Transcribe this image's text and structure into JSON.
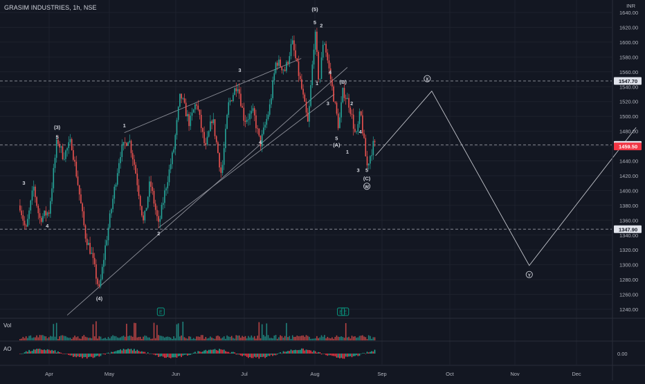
{
  "header": {
    "symbol_title": "GRASIM INDUSTRIES, 1h, NSE",
    "currency": "INR"
  },
  "panes": {
    "volume_label": "Vol",
    "ao_label": "AO",
    "ao_zero_label": "0.00"
  },
  "colors": {
    "background": "#131722",
    "grid": "#1e222d",
    "up": "#26a69a",
    "down": "#ef5350",
    "ao_up": "#22ab94",
    "ao_down": "#f23645",
    "drawing": "#b2b5be",
    "text": "#d1d4dc",
    "axis_text": "#b2b5be",
    "event_badge": "#089981"
  },
  "chart_data": {
    "type": "candlestick",
    "title": "GRASIM INDUSTRIES, 1h, NSE",
    "currency": "INR",
    "ylim": [
      1220,
      1650
    ],
    "y_ticks": [
      1240,
      1260,
      1280,
      1300,
      1320,
      1340,
      1360,
      1380,
      1400,
      1420,
      1440,
      1460,
      1480,
      1500,
      1520,
      1540,
      1560,
      1580,
      1600,
      1620,
      1640
    ],
    "x_ticks": [
      "Apr",
      "May",
      "Jun",
      "Jul",
      "Aug",
      "Sep",
      "Oct",
      "Nov",
      "Dec"
    ],
    "price_path": [
      {
        "x": "Mar 17",
        "y": 1380
      },
      {
        "x": "Mar 20",
        "y": 1345
      },
      {
        "x": "Mar 24",
        "y": 1405
      },
      {
        "x": "Mar 27",
        "y": 1362
      },
      {
        "x": "Apr 01",
        "y": 1372
      },
      {
        "x": "Apr 05",
        "y": 1470
      },
      {
        "x": "Apr 08",
        "y": 1446
      },
      {
        "x": "Apr 12",
        "y": 1466
      },
      {
        "x": "Apr 15",
        "y": 1415
      },
      {
        "x": "Apr 19",
        "y": 1340
      },
      {
        "x": "Apr 22",
        "y": 1315
      },
      {
        "x": "Apr 26",
        "y": 1265
      },
      {
        "x": "Apr 29",
        "y": 1325
      },
      {
        "x": "May 03",
        "y": 1395
      },
      {
        "x": "May 06",
        "y": 1450
      },
      {
        "x": "May 10",
        "y": 1472
      },
      {
        "x": "May 13",
        "y": 1430
      },
      {
        "x": "May 17",
        "y": 1355
      },
      {
        "x": "May 20",
        "y": 1412
      },
      {
        "x": "May 24",
        "y": 1352
      },
      {
        "x": "May 27",
        "y": 1400
      },
      {
        "x": "May 31",
        "y": 1455
      },
      {
        "x": "Jun 03",
        "y": 1530
      },
      {
        "x": "Jun 07",
        "y": 1490
      },
      {
        "x": "Jun 10",
        "y": 1520
      },
      {
        "x": "Jun 14",
        "y": 1455
      },
      {
        "x": "Jun 17",
        "y": 1500
      },
      {
        "x": "Jun 21",
        "y": 1420
      },
      {
        "x": "Jun 24",
        "y": 1515
      },
      {
        "x": "Jun 28",
        "y": 1545
      },
      {
        "x": "Jul 01",
        "y": 1495
      },
      {
        "x": "Jul 05",
        "y": 1505
      },
      {
        "x": "Jul 08",
        "y": 1462
      },
      {
        "x": "Jul 12",
        "y": 1510
      },
      {
        "x": "Jul 15",
        "y": 1575
      },
      {
        "x": "Jul 19",
        "y": 1562
      },
      {
        "x": "Jul 22",
        "y": 1600
      },
      {
        "x": "Jul 26",
        "y": 1540
      },
      {
        "x": "Jul 29",
        "y": 1488
      },
      {
        "x": "Aug 01",
        "y": 1616
      },
      {
        "x": "Aug 03",
        "y": 1540
      },
      {
        "x": "Aug 05",
        "y": 1608
      },
      {
        "x": "Aug 08",
        "y": 1555
      },
      {
        "x": "Aug 12",
        "y": 1485
      },
      {
        "x": "Aug 14",
        "y": 1535
      },
      {
        "x": "Aug 17",
        "y": 1515
      },
      {
        "x": "Aug 20",
        "y": 1470
      },
      {
        "x": "Aug 22",
        "y": 1507
      },
      {
        "x": "Aug 25",
        "y": 1432
      },
      {
        "x": "Aug 27",
        "y": 1452
      },
      {
        "x": "Aug 28",
        "y": 1462
      },
      {
        "x": "Aug 29",
        "y": 1459.5
      }
    ],
    "projection": [
      {
        "x": "Aug 29",
        "y": 1447
      },
      {
        "x": "Sep 23",
        "y": 1534
      },
      {
        "x": "Nov 08",
        "y": 1299
      },
      {
        "x": "Dec 31",
        "y": 1485
      }
    ],
    "price_labels": [
      {
        "value": 1547.7,
        "text": "1547.70",
        "style": "dark"
      },
      {
        "value": 1461.6,
        "text": "1461.60",
        "style": "dark"
      },
      {
        "value": 1459.5,
        "text": "1459.50",
        "style": "red"
      },
      {
        "value": 1347.9,
        "text": "1347.90",
        "style": "dark"
      }
    ],
    "horizontal_lines": [
      1547.7,
      1461.6,
      1347.9
    ],
    "wave_labels": [
      {
        "text": "3",
        "x": "Mar 19",
        "y": 1408
      },
      {
        "text": "(3)",
        "x": "Apr 05",
        "y": 1483
      },
      {
        "text": "5",
        "x": "Apr 05",
        "y": 1470
      },
      {
        "text": "4",
        "x": "Mar 31",
        "y": 1350
      },
      {
        "text": "(4)",
        "x": "Apr 26",
        "y": 1252
      },
      {
        "text": "1",
        "x": "May 08",
        "y": 1485
      },
      {
        "text": "2",
        "x": "May 24",
        "y": 1340
      },
      {
        "text": "3",
        "x": "Jun 29",
        "y": 1560
      },
      {
        "text": "4",
        "x": "Jul 08",
        "y": 1463
      },
      {
        "text": "(5)",
        "x": "Aug 01",
        "y": 1642
      },
      {
        "text": "5",
        "x": "Aug 01",
        "y": 1624
      },
      {
        "text": "2",
        "x": "Aug 04",
        "y": 1620
      },
      {
        "text": "1",
        "x": "Aug 02",
        "y": 1542
      },
      {
        "text": "4",
        "x": "Aug 08",
        "y": 1557
      },
      {
        "text": "3",
        "x": "Aug 07",
        "y": 1515
      },
      {
        "text": "(B)",
        "x": "Aug 14",
        "y": 1544
      },
      {
        "text": "2",
        "x": "Aug 18",
        "y": 1515
      },
      {
        "text": "5",
        "x": "Aug 11",
        "y": 1468
      },
      {
        "text": "(A)",
        "x": "Aug 11",
        "y": 1459
      },
      {
        "text": "1",
        "x": "Aug 16",
        "y": 1450
      },
      {
        "text": "4",
        "x": "Aug 22",
        "y": 1477
      },
      {
        "text": "3",
        "x": "Aug 21",
        "y": 1425
      },
      {
        "text": "5",
        "x": "Aug 25",
        "y": 1425
      },
      {
        "text": "(C)",
        "x": "Aug 25",
        "y": 1414
      },
      {
        "text": "W",
        "x": "Aug 25",
        "y": 1403,
        "circled": true
      },
      {
        "text": "X",
        "x": "Sep 21",
        "y": 1548,
        "circled": true
      },
      {
        "text": "Y",
        "x": "Nov 08",
        "y": 1284,
        "circled": true
      }
    ],
    "trendlines": [
      {
        "from": {
          "x": "May 08",
          "y": 1478
        },
        "to": {
          "x": "Jul 26",
          "y": 1578
        }
      },
      {
        "from": {
          "x": "May 24",
          "y": 1350
        },
        "to": {
          "x": "Aug 10",
          "y": 1530
        }
      },
      {
        "from": {
          "x": "Apr 10",
          "y": 1232
        },
        "to": {
          "x": "Aug 16",
          "y": 1566
        }
      }
    ],
    "event_markers": [
      {
        "text": "E",
        "x": "May 25"
      },
      {
        "text": "E",
        "x": "Aug 13"
      },
      {
        "text": "E",
        "x": "Aug 15"
      }
    ],
    "volume_pane": {
      "label": "Vol"
    },
    "ao_pane": {
      "label": "AO",
      "zero_label": "0.00"
    },
    "grid": true
  }
}
